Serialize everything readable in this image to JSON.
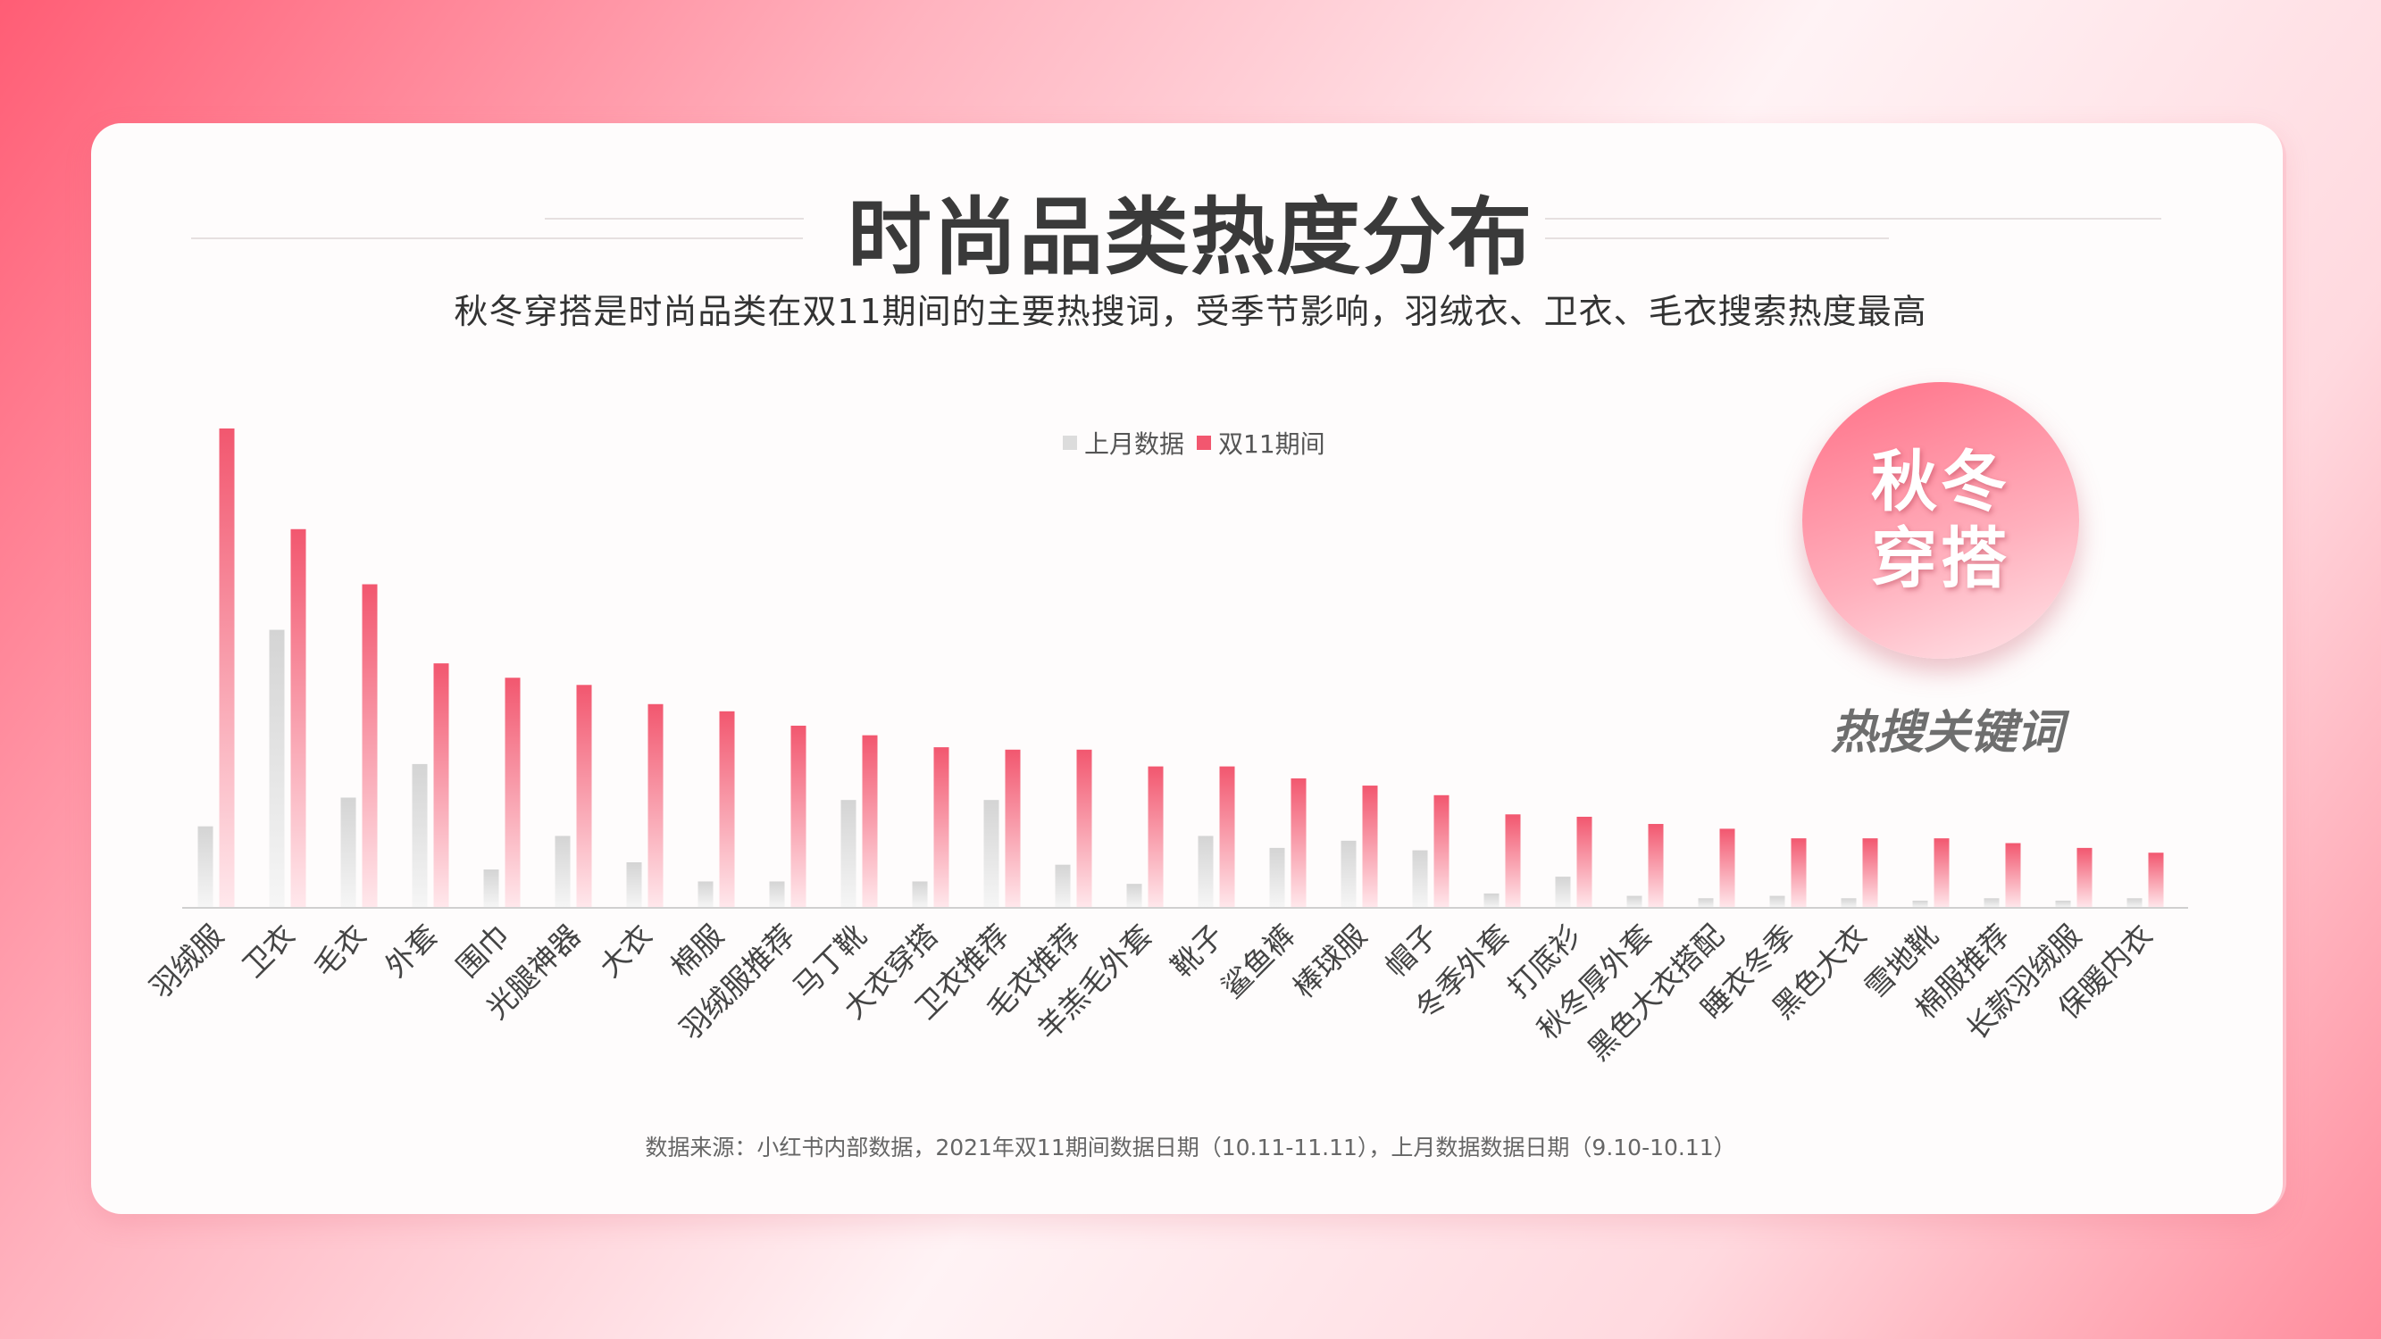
{
  "title": "时尚品类热度分布",
  "subtitle": "秋冬穿搭是时尚品类在双11期间的主要热搜词，受季节影响，羽绒衣、卫衣、毛衣搜索热度最高",
  "badge": {
    "line1": "秋冬",
    "line2": "穿搭"
  },
  "keyword_tag": "热搜关键词",
  "source": "数据来源：小红书内部数据，2021年双11期间数据日期（10.11-11.11），上月数据数据日期（9.10-10.11）",
  "colors": {
    "last_month": "#dcdcdc",
    "double11": "#f2576f",
    "badge": "#ff6f86",
    "text": "#3a3a3a"
  },
  "chart_data": {
    "type": "bar",
    "categories": [
      "羽绒服",
      "卫衣",
      "毛衣",
      "外套",
      "围巾",
      "光腿神器",
      "大衣",
      "棉服",
      "羽绒服推荐",
      "马丁靴",
      "大衣穿搭",
      "卫衣推荐",
      "毛衣推荐",
      "羊羔毛外套",
      "靴子",
      "鲨鱼裤",
      "棒球服",
      "帽子",
      "冬季外套",
      "打底衫",
      "秋冬厚外套",
      "黑色大衣搭配",
      "睡衣冬季",
      "黑色大衣",
      "雪地靴",
      "棉服推荐",
      "长款羽绒服",
      "保暖内衣"
    ],
    "series": [
      {
        "name": "上月数据",
        "values": [
          17,
          58,
          23,
          30,
          8,
          15,
          9.5,
          5.5,
          5.5,
          22.5,
          5.5,
          22.5,
          9,
          5,
          15,
          12.5,
          14,
          12,
          3,
          6.5,
          2.5,
          2,
          2.5,
          2,
          1.5,
          2,
          1.5,
          2
        ]
      },
      {
        "name": "双11期间",
        "values": [
          100,
          79,
          67.5,
          51,
          48,
          46.5,
          42.5,
          41,
          38,
          36,
          33.5,
          33,
          33,
          29.5,
          29.5,
          27,
          25.5,
          23.5,
          19.5,
          19,
          17.5,
          16.5,
          14.5,
          14.5,
          14.5,
          13.5,
          12.5,
          11.5
        ]
      }
    ],
    "legend_position": "top-center",
    "grid": false
  }
}
